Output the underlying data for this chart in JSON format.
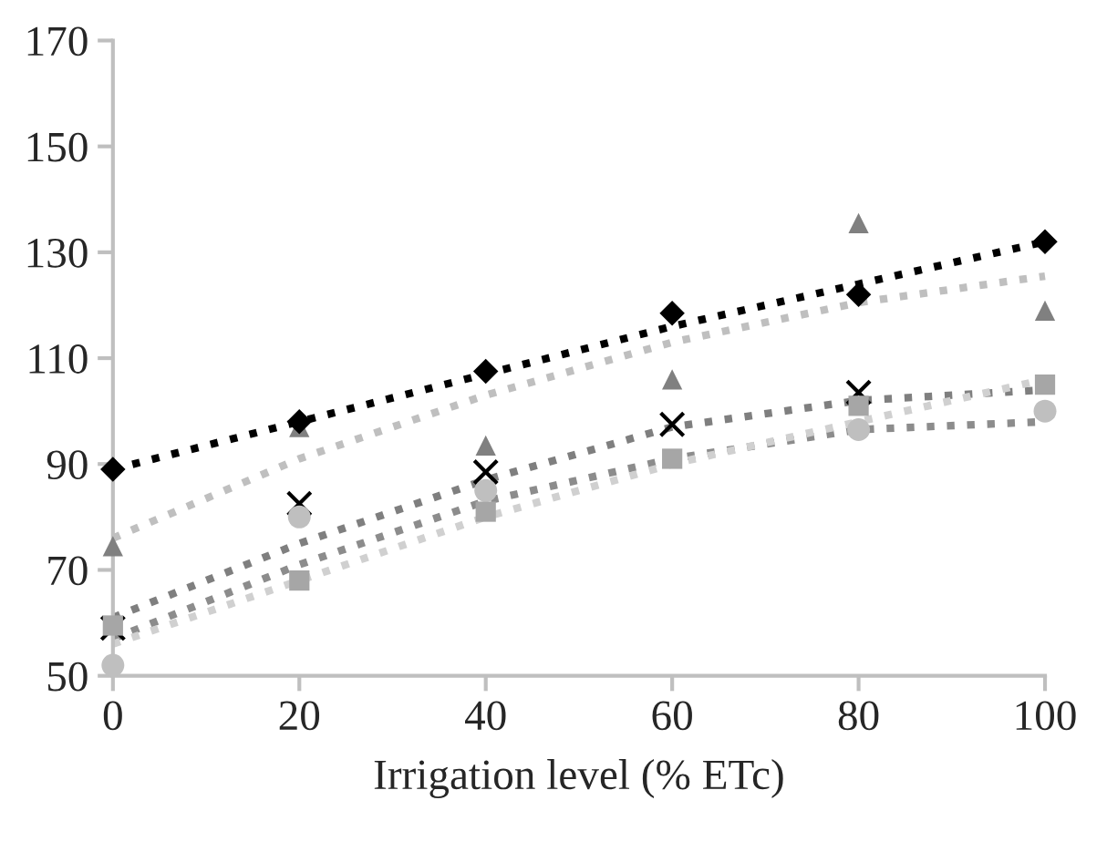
{
  "chart_data": {
    "type": "scatter",
    "xlabel": "Irrigation level (% ETc)",
    "xlim": [
      0,
      100
    ],
    "xticks": [
      0,
      20,
      40,
      60,
      80,
      100
    ],
    "ylim": [
      50,
      170
    ],
    "yticks": [
      50,
      70,
      90,
      110,
      130,
      150,
      170
    ],
    "grid": false,
    "legend": false,
    "series": [
      {
        "type": "line",
        "color": "#bfbfbf",
        "marker": "none",
        "line_style": "dotted",
        "x": [
          0,
          20,
          40,
          60,
          80,
          100
        ],
        "values": [
          76,
          91,
          103,
          113,
          120.5,
          125.5
        ]
      },
      {
        "type": "line",
        "color": "#7f7f7f",
        "marker": "none",
        "line_style": "dotted",
        "x": [
          0,
          20,
          40,
          60,
          80,
          100
        ],
        "values": [
          61,
          75,
          87,
          97,
          102,
          104
        ]
      },
      {
        "type": "line",
        "color": "#8c8c8c",
        "marker": "none",
        "line_style": "dotted",
        "x": [
          0,
          20,
          40,
          60,
          80,
          100
        ],
        "values": [
          57,
          71,
          83,
          91,
          96.5,
          98
        ]
      },
      {
        "type": "line",
        "color": "#d0d0d0",
        "marker": "none",
        "line_style": "dotted",
        "x": [
          0,
          20,
          40,
          60,
          80,
          100
        ],
        "values": [
          56,
          68,
          80,
          90,
          98,
          106
        ]
      },
      {
        "type": "line",
        "color": "#000000",
        "marker": "none",
        "line_style": "dotted",
        "x": [
          0,
          20,
          40,
          60,
          80,
          100
        ],
        "values": [
          89,
          98,
          107,
          116,
          124,
          132
        ]
      },
      {
        "color": "#808080",
        "marker": "triangle",
        "x": [
          0,
          20,
          40,
          60,
          80,
          100
        ],
        "values": [
          74.5,
          97,
          93.5,
          106,
          135.5,
          119
        ]
      },
      {
        "color": "#000000",
        "marker": "cross",
        "x": [
          0,
          20,
          40,
          60,
          80
        ],
        "values": [
          59,
          82.5,
          88.5,
          97.5,
          103.5
        ]
      },
      {
        "color": "#bfbfbf",
        "marker": "circle",
        "x": [
          0,
          20,
          40,
          60,
          80,
          100
        ],
        "values": [
          52,
          80,
          85,
          null,
          96.5,
          100
        ]
      },
      {
        "color": "#a6a6a6",
        "marker": "square",
        "x": [
          0,
          20,
          40,
          60,
          80,
          100
        ],
        "values": [
          59.5,
          68,
          81,
          91,
          101,
          105
        ]
      },
      {
        "color": "#000000",
        "marker": "diamond",
        "x": [
          0,
          20,
          40,
          60,
          80,
          100
        ],
        "values": [
          89,
          98,
          107.5,
          118.5,
          122,
          132
        ]
      }
    ]
  }
}
